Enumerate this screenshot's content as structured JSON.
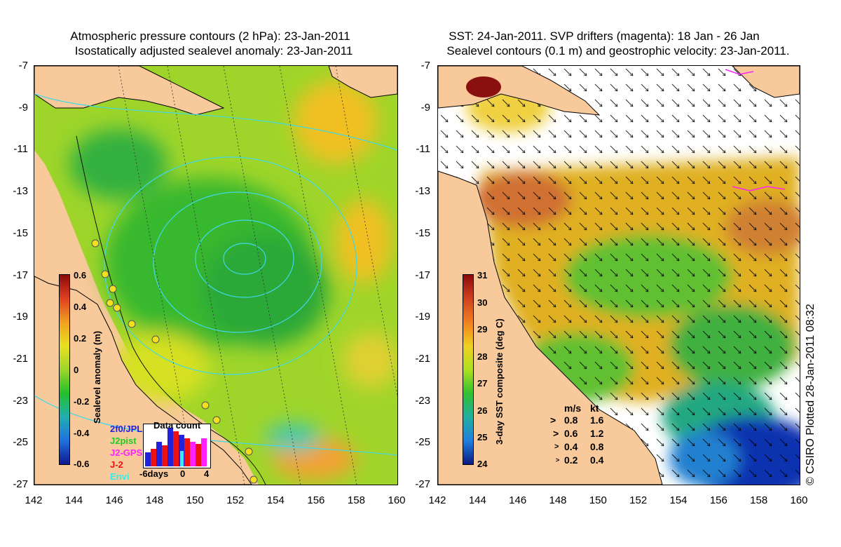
{
  "left_panel": {
    "title_line1": "Atmospheric pressure contours (2 hPa): 23-Jan-2011",
    "title_line2": "Isostatically adjusted sealevel anomaly: 23-Jan-2011",
    "colorbar": {
      "label": "Sealevel anomaly (m)",
      "ticks": [
        "0.6",
        "0.4",
        "0.2",
        "0",
        "-0.2",
        "-0.4",
        "-0.6"
      ]
    },
    "inset": {
      "title": "Data count",
      "x_ticks": [
        "-6days",
        "0",
        "4"
      ],
      "satellites": [
        {
          "name": "2f0/JPL",
          "color": "#2222dd"
        },
        {
          "name": "J2pist",
          "color": "#22cc22"
        },
        {
          "name": "J2-GPS",
          "color": "#ff22ff"
        },
        {
          "name": "J-2",
          "color": "#ee1111"
        },
        {
          "name": "Envi",
          "color": "#33eeee"
        }
      ]
    }
  },
  "right_panel": {
    "title_line1": "SST: 24-Jan-2011. SVP drifters (magenta): 18 Jan - 26 Jan",
    "title_line2": "Sealevel contours (0.1 m) and geostrophic velocity: 23-Jan-2011.",
    "colorbar": {
      "label": "3-day SST composite (deg C)",
      "ticks": [
        "31",
        "30",
        "29",
        "28",
        "27",
        "26",
        "25",
        "24"
      ]
    },
    "speed_legend": {
      "header_ms": "m/s",
      "header_kt": "kt",
      "rows": [
        {
          "ms": "0.8",
          "kt": "1.6"
        },
        {
          "ms": "0.6",
          "kt": "1.2"
        },
        {
          "ms": "0.4",
          "kt": "0.8"
        },
        {
          "ms": "0.2",
          "kt": "0.4"
        }
      ]
    }
  },
  "axes": {
    "lat_ticks": [
      "-7",
      "-9",
      "-11",
      "-13",
      "-15",
      "-17",
      "-19",
      "-21",
      "-23",
      "-25",
      "-27"
    ],
    "lon_ticks": [
      "142",
      "144",
      "146",
      "148",
      "150",
      "152",
      "154",
      "156",
      "158",
      "160"
    ]
  },
  "copyright": "© CSIRO Plotted 28-Jan-2011 08:32",
  "colors": {
    "land": "#f8c99a",
    "coast": "#000000",
    "contour": "#40d8e8",
    "sla_low": "#08127a",
    "sla_mid": "#22c02a",
    "sla_high": "#8a0a0a"
  }
}
